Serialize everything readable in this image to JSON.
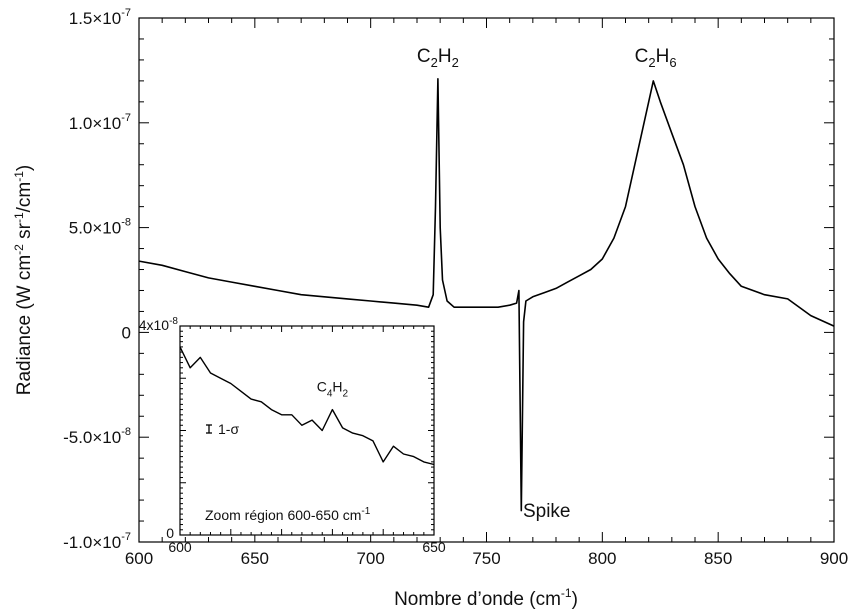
{
  "chart_data": {
    "type": "line",
    "xlabel": {
      "base": "Nombre d’onde (cm",
      "sup": "-1",
      "tail": ")"
    },
    "ylabel": {
      "parts": [
        {
          "t": "Radiance (W cm",
          "s": false
        },
        {
          "t": "-2",
          "s": true
        },
        {
          "t": " sr",
          "s": false
        },
        {
          "t": "-1",
          "s": true
        },
        {
          "t": "/cm",
          "s": false
        },
        {
          "t": "-1",
          "s": true
        },
        {
          "t": ")",
          "s": false
        }
      ]
    },
    "xlim": [
      600,
      900
    ],
    "ylim": [
      -1e-07,
      1.5e-07
    ],
    "x_ticks": [
      600,
      650,
      700,
      750,
      800,
      850,
      900
    ],
    "y_ticks": [
      {
        "value": -1e-07,
        "mant": "-1.0×10",
        "exp": "-7"
      },
      {
        "value": -5e-08,
        "mant": "-5.0×10",
        "exp": "-8"
      },
      {
        "value": 0,
        "mant": "0",
        "exp": ""
      },
      {
        "value": 5e-08,
        "mant": "5.0×10",
        "exp": "-8"
      },
      {
        "value": 1e-07,
        "mant": "1.0×10",
        "exp": "-7"
      },
      {
        "value": 1.5e-07,
        "mant": "1.5×10",
        "exp": "-7"
      }
    ],
    "annotations": [
      {
        "id": "c2h2",
        "parts": [
          {
            "t": "C",
            "s": false
          },
          {
            "t": "2",
            "s": true
          },
          {
            "t": "H",
            "s": false
          },
          {
            "t": "2",
            "s": true
          }
        ],
        "x": 729,
        "y": 1.29e-07
      },
      {
        "id": "c2h6",
        "parts": [
          {
            "t": "C",
            "s": false
          },
          {
            "t": "2",
            "s": true
          },
          {
            "t": "H",
            "s": false
          },
          {
            "t": "6",
            "s": true
          }
        ],
        "x": 823,
        "y": 1.29e-07
      },
      {
        "id": "spike",
        "parts": [
          {
            "t": "Spike",
            "s": false
          }
        ],
        "x": 776,
        "y": -8.8e-08
      }
    ],
    "series": [
      {
        "color": "#000000",
        "x": [
          600,
          610,
          620,
          630,
          640,
          650,
          660,
          670,
          680,
          690,
          700,
          710,
          720,
          725,
          727,
          728,
          729,
          730,
          731,
          733,
          736,
          740,
          745,
          750,
          755,
          760,
          763,
          764,
          765,
          766,
          767,
          770,
          775,
          780,
          785,
          790,
          795,
          800,
          805,
          810,
          815,
          820,
          822,
          825,
          830,
          835,
          840,
          845,
          850,
          855,
          860,
          870,
          880,
          890,
          900
        ],
        "y": [
          3.4e-08,
          3.2e-08,
          2.9e-08,
          2.6e-08,
          2.4e-08,
          2.2e-08,
          2e-08,
          1.8e-08,
          1.7e-08,
          1.6e-08,
          1.5e-08,
          1.4e-08,
          1.3e-08,
          1.2e-08,
          1.8e-08,
          6e-08,
          1.21e-07,
          5e-08,
          2.5e-08,
          1.5e-08,
          1.2e-08,
          1.2e-08,
          1.2e-08,
          1.2e-08,
          1.2e-08,
          1.3e-08,
          1.4e-08,
          2e-08,
          -8.5e-08,
          5e-09,
          1.5e-08,
          1.7e-08,
          1.9e-08,
          2.1e-08,
          2.4e-08,
          2.7e-08,
          3e-08,
          3.5e-08,
          4.5e-08,
          6e-08,
          8.5e-08,
          1.1e-07,
          1.2e-07,
          1.1e-07,
          9.5e-08,
          8e-08,
          6e-08,
          4.5e-08,
          3.5e-08,
          2.8e-08,
          2.2e-08,
          1.8e-08,
          1.6e-08,
          8e-09,
          3e-09
        ]
      }
    ],
    "inset": {
      "title": "Zoom région 600-650 cm",
      "title_sup": "-1",
      "xlim": [
        600,
        650
      ],
      "ylim": [
        0,
        4e-08
      ],
      "x_tick_labels": [
        "600",
        "650"
      ],
      "y_top_label": {
        "mant": "4x10",
        "exp": "-8"
      },
      "y_bottom_label": "0",
      "sigma_label": "1-σ",
      "species": [
        {
          "t": "C",
          "s": false
        },
        {
          "t": "4",
          "s": true
        },
        {
          "t": "H",
          "s": false
        },
        {
          "t": "2",
          "s": true
        }
      ],
      "species_x": 630,
      "species_y": 2.75e-08,
      "series": {
        "x": [
          600,
          602,
          604,
          606,
          608,
          610,
          612,
          614,
          616,
          618,
          620,
          622,
          624,
          626,
          628,
          630,
          632,
          634,
          636,
          638,
          640,
          642,
          644,
          646,
          648,
          650
        ],
        "y": [
          3.6e-08,
          3.2e-08,
          3.4e-08,
          3.1e-08,
          3e-08,
          2.9e-08,
          2.75e-08,
          2.6e-08,
          2.55e-08,
          2.4e-08,
          2.3e-08,
          2.3e-08,
          2.1e-08,
          2.2e-08,
          2e-08,
          2.4e-08,
          2.05e-08,
          1.95e-08,
          1.9e-08,
          1.8e-08,
          1.4e-08,
          1.7e-08,
          1.55e-08,
          1.5e-08,
          1.4e-08,
          1.35e-08
        ]
      }
    }
  }
}
